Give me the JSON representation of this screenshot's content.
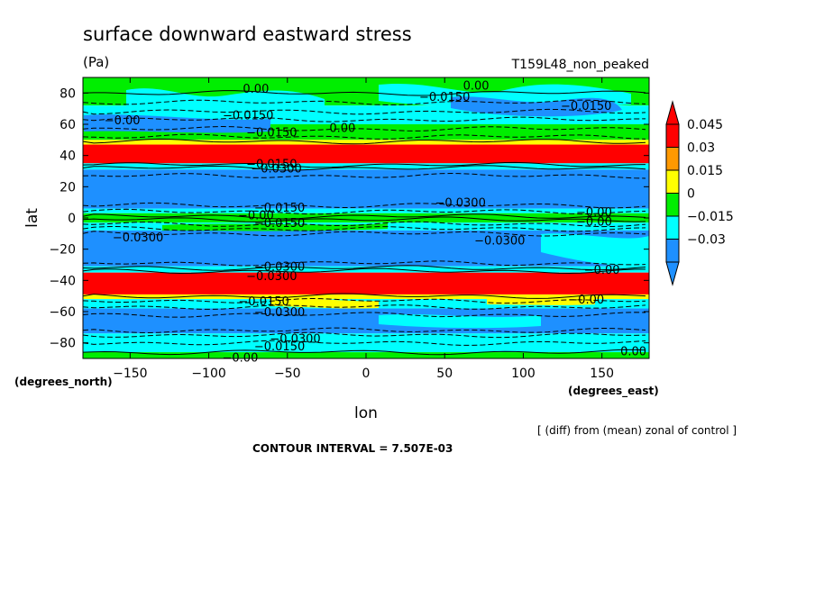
{
  "chart_data": {
    "type": "contour",
    "title": "surface downward eastward stress",
    "units": "(Pa)",
    "run_label": "T159L48_non_peaked",
    "xlabel": "lon",
    "ylabel": "lat",
    "x_units_label": "(degrees_east)",
    "y_units_label": "(degrees_north)",
    "xlim": [
      -180,
      180
    ],
    "ylim": [
      -90,
      90
    ],
    "x_ticks": [
      -150,
      -100,
      -50,
      0,
      50,
      100,
      150
    ],
    "x_tick_labels": [
      "−150",
      "−100",
      "−50",
      "0",
      "50",
      "100",
      "150"
    ],
    "y_ticks": [
      -80,
      -60,
      -40,
      -20,
      0,
      20,
      40,
      60,
      80
    ],
    "y_tick_labels": [
      "−80",
      "−60",
      "−40",
      "−20",
      "0",
      "20",
      "40",
      "60",
      "80"
    ],
    "legend": {
      "levels": [
        "0.045",
        "0.03",
        "0.015",
        "0",
        "−0.015",
        "−0.03"
      ],
      "colors": [
        "#ff0000",
        "#ff9900",
        "#ffff00",
        "#00ee00",
        "#00ffff",
        "#1e90ff"
      ]
    },
    "bands": [
      {
        "lat_min": 72,
        "lat_max": 90,
        "level": "0",
        "color": "#00ee00"
      },
      {
        "lat_min": 60,
        "lat_max": 72,
        "level": "-0.015",
        "color": "#00ffff"
      },
      {
        "lat_min": 50,
        "lat_max": 60,
        "level": "0",
        "color": "#00ee00"
      },
      {
        "lat_min": 47,
        "lat_max": 50,
        "level": "0.015",
        "color": "#ffff00"
      },
      {
        "lat_min": 35,
        "lat_max": 47,
        "level": "0.045",
        "color": "#ff0000"
      },
      {
        "lat_min": 31,
        "lat_max": 35,
        "level": "-0.015",
        "color": "#00ffff"
      },
      {
        "lat_min": 6,
        "lat_max": 31,
        "level": "-0.03",
        "color": "#1e90ff"
      },
      {
        "lat_min": 3,
        "lat_max": 6,
        "level": "-0.015",
        "color": "#00ffff"
      },
      {
        "lat_min": -3,
        "lat_max": 3,
        "level": "0",
        "color": "#00ee00"
      },
      {
        "lat_min": -8,
        "lat_max": -3,
        "level": "-0.015",
        "color": "#00ffff"
      },
      {
        "lat_min": -31,
        "lat_max": -8,
        "level": "-0.03",
        "color": "#1e90ff"
      },
      {
        "lat_min": -35,
        "lat_max": -31,
        "level": "-0.015",
        "color": "#00ffff"
      },
      {
        "lat_min": -49,
        "lat_max": -35,
        "level": "0.045",
        "color": "#ff0000"
      },
      {
        "lat_min": -52,
        "lat_max": -49,
        "level": "0.015",
        "color": "#ffff00"
      },
      {
        "lat_min": -58,
        "lat_max": -52,
        "level": "-0.015",
        "color": "#00ffff"
      },
      {
        "lat_min": -74,
        "lat_max": -58,
        "level": "-0.03",
        "color": "#1e90ff"
      },
      {
        "lat_min": -86,
        "lat_max": -74,
        "level": "-0.015",
        "color": "#00ffff"
      },
      {
        "lat_min": -90,
        "lat_max": -86,
        "level": "0",
        "color": "#00ee00"
      }
    ],
    "contour_labels": [
      {
        "text": "0.00",
        "lon": -70,
        "lat": 83
      },
      {
        "text": "0.00",
        "lon": 70,
        "lat": 85
      },
      {
        "text": "−0.0150",
        "lon": 50,
        "lat": 78
      },
      {
        "text": "−0.0150",
        "lon": 140,
        "lat": 72
      },
      {
        "text": "−0.0150",
        "lon": -75,
        "lat": 66
      },
      {
        "text": "−0.00",
        "lon": -155,
        "lat": 63
      },
      {
        "text": "0.00",
        "lon": -15,
        "lat": 58
      },
      {
        "text": "−0.0150",
        "lon": -60,
        "lat": 55
      },
      {
        "text": "−0.0150",
        "lon": -60,
        "lat": 35
      },
      {
        "text": "−0.0300",
        "lon": -57,
        "lat": 32
      },
      {
        "text": "−0.0150",
        "lon": -55,
        "lat": 7
      },
      {
        "text": "−0.0300",
        "lon": 60,
        "lat": 10
      },
      {
        "text": "−0.00",
        "lon": -70,
        "lat": 2
      },
      {
        "text": "−0.0150",
        "lon": -55,
        "lat": -3
      },
      {
        "text": "−0.00",
        "lon": 145,
        "lat": 4
      },
      {
        "text": "−0.00",
        "lon": 145,
        "lat": -2
      },
      {
        "text": "−0.0300",
        "lon": -145,
        "lat": -12
      },
      {
        "text": "−0.0300",
        "lon": 85,
        "lat": -14
      },
      {
        "text": "−0.0300",
        "lon": -55,
        "lat": -31
      },
      {
        "text": "−0.0300",
        "lon": -60,
        "lat": -37
      },
      {
        "text": "−0.00",
        "lon": 150,
        "lat": -33
      },
      {
        "text": "−0.0150",
        "lon": -65,
        "lat": -53
      },
      {
        "text": "−0.0300",
        "lon": -55,
        "lat": -60
      },
      {
        "text": "−0.00",
        "lon": 140,
        "lat": -52
      },
      {
        "text": "−0.0300",
        "lon": -45,
        "lat": -77
      },
      {
        "text": "−0.0150",
        "lon": -55,
        "lat": -82
      },
      {
        "text": "−0.00",
        "lon": -80,
        "lat": -89
      },
      {
        "text": "0.00",
        "lon": 170,
        "lat": -85
      }
    ],
    "contour_lines": [
      {
        "lat": 80,
        "dashed": false
      },
      {
        "lat": 74,
        "dashed": true
      },
      {
        "lat": 68,
        "dashed": true
      },
      {
        "lat": 63,
        "dashed": true
      },
      {
        "lat": 57,
        "dashed": true
      },
      {
        "lat": 52,
        "dashed": true
      },
      {
        "lat": 49,
        "dashed": false
      },
      {
        "lat": 34,
        "dashed": false
      },
      {
        "lat": 32,
        "dashed": false
      },
      {
        "lat": 27,
        "dashed": true
      },
      {
        "lat": 8,
        "dashed": true
      },
      {
        "lat": 4,
        "dashed": true
      },
      {
        "lat": 1,
        "dashed": false
      },
      {
        "lat": -1,
        "dashed": false
      },
      {
        "lat": -4,
        "dashed": true
      },
      {
        "lat": -7,
        "dashed": true
      },
      {
        "lat": -10,
        "dashed": true
      },
      {
        "lat": -29,
        "dashed": true
      },
      {
        "lat": -32,
        "dashed": false
      },
      {
        "lat": -34,
        "dashed": false
      },
      {
        "lat": -50,
        "dashed": false
      },
      {
        "lat": -53,
        "dashed": true
      },
      {
        "lat": -57,
        "dashed": true
      },
      {
        "lat": -62,
        "dashed": true
      },
      {
        "lat": -72,
        "dashed": true
      },
      {
        "lat": -75,
        "dashed": true
      },
      {
        "lat": -80,
        "dashed": true
      },
      {
        "lat": -86,
        "dashed": false
      }
    ]
  },
  "footer": {
    "diff_note": "[ (diff) from (mean) zonal of control ]",
    "contour_interval": "CONTOUR INTERVAL = 7.507E-03"
  }
}
